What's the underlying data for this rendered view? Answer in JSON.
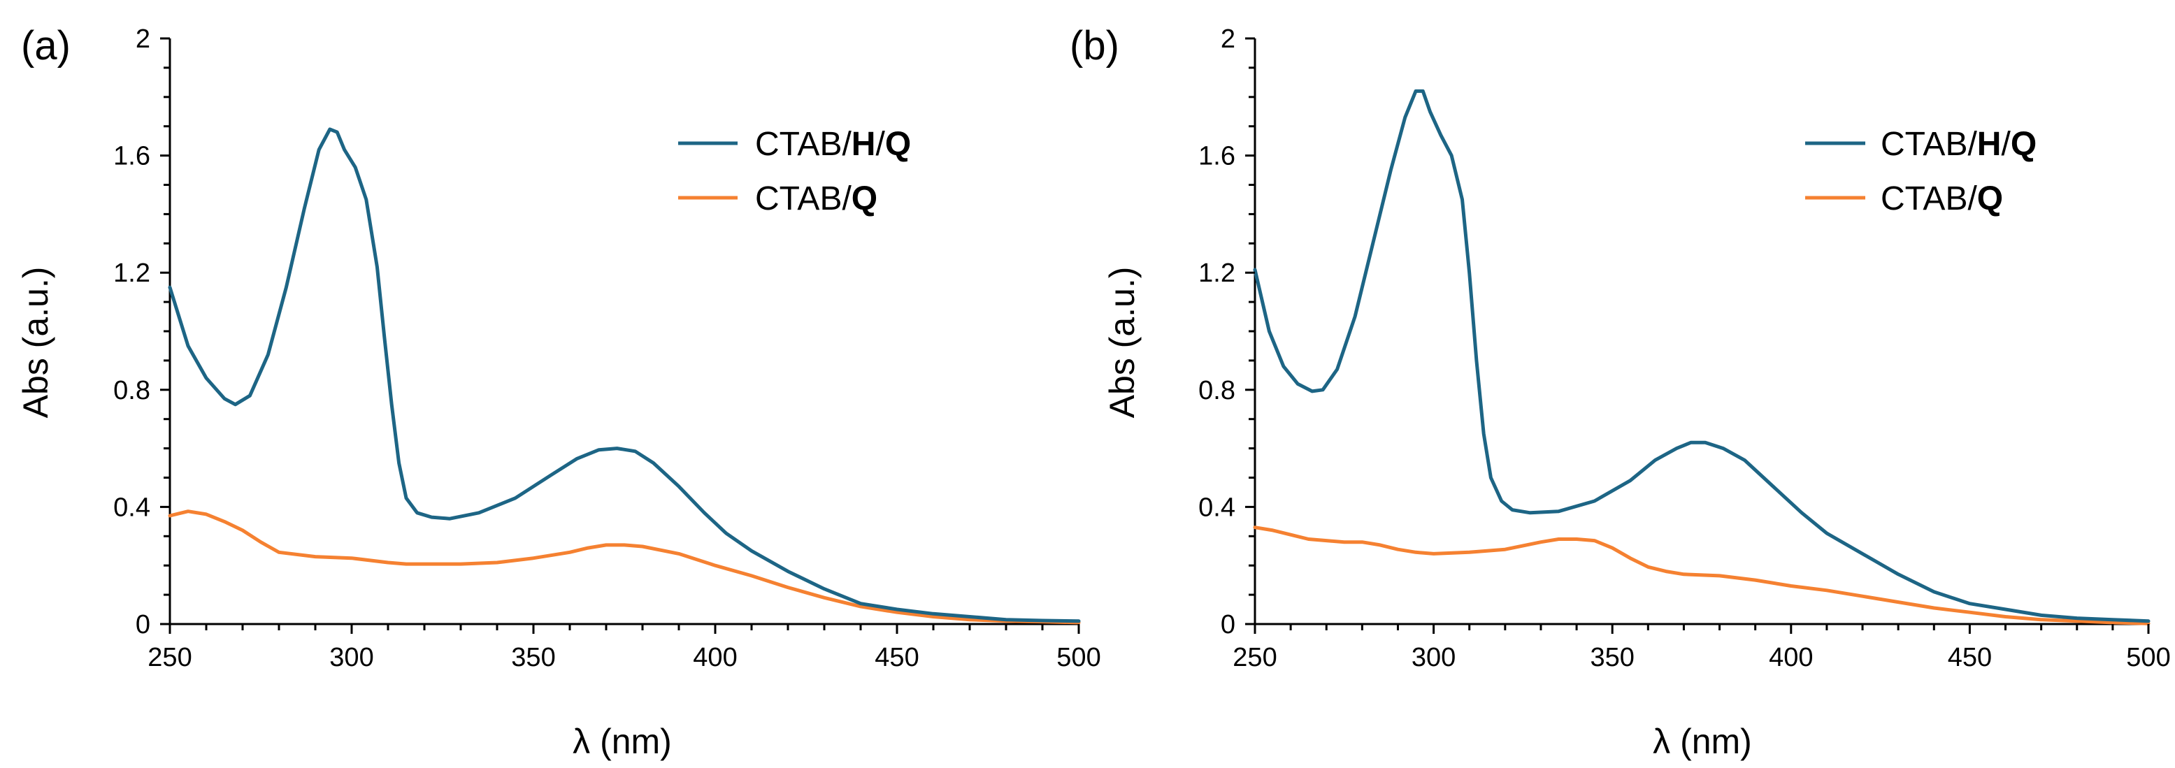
{
  "chart_data": [
    {
      "panel": "(a)",
      "type": "line",
      "xlabel": "λ (nm)",
      "ylabel": "Abs (a.u.)",
      "xlim": [
        250,
        500
      ],
      "ylim": [
        0,
        2
      ],
      "xticks": [
        "250",
        "300",
        "350",
        "400",
        "450",
        "500"
      ],
      "yticks": [
        "0",
        "0.4",
        "0.8",
        "1.2",
        "1.6",
        "2"
      ],
      "legend": [
        {
          "prefix": "CTAB/",
          "parts": [
            "H",
            "/",
            "Q"
          ],
          "bold": [
            true,
            false,
            true
          ],
          "color": "#1d6585"
        },
        {
          "prefix": "CTAB/",
          "parts": [
            "Q"
          ],
          "bold": [
            true
          ],
          "color": "#f58131"
        }
      ],
      "series": [
        {
          "name": "CTAB/H/Q",
          "color": "#1d6585",
          "x": [
            250,
            255,
            260,
            265,
            268,
            272,
            277,
            282,
            287,
            291,
            294,
            296,
            298,
            301,
            304,
            307,
            309,
            311,
            313,
            315,
            318,
            322,
            327,
            335,
            345,
            355,
            362,
            368,
            373,
            378,
            383,
            390,
            397,
            403,
            410,
            420,
            430,
            440,
            450,
            460,
            470,
            480,
            490,
            500
          ],
          "y": [
            1.15,
            0.95,
            0.84,
            0.77,
            0.75,
            0.78,
            0.92,
            1.15,
            1.42,
            1.62,
            1.69,
            1.68,
            1.62,
            1.56,
            1.45,
            1.22,
            0.98,
            0.75,
            0.55,
            0.43,
            0.38,
            0.365,
            0.36,
            0.38,
            0.43,
            0.51,
            0.565,
            0.595,
            0.6,
            0.59,
            0.55,
            0.47,
            0.38,
            0.31,
            0.25,
            0.18,
            0.12,
            0.07,
            0.05,
            0.035,
            0.025,
            0.015,
            0.012,
            0.01
          ]
        },
        {
          "name": "CTAB/Q",
          "color": "#f58131",
          "x": [
            250,
            255,
            260,
            265,
            270,
            275,
            280,
            290,
            300,
            310,
            315,
            320,
            330,
            340,
            350,
            360,
            365,
            370,
            375,
            380,
            390,
            400,
            410,
            420,
            430,
            440,
            450,
            460,
            470,
            480,
            490,
            500
          ],
          "y": [
            0.37,
            0.385,
            0.375,
            0.35,
            0.32,
            0.28,
            0.245,
            0.23,
            0.225,
            0.21,
            0.205,
            0.205,
            0.205,
            0.21,
            0.225,
            0.245,
            0.26,
            0.27,
            0.27,
            0.265,
            0.24,
            0.2,
            0.165,
            0.125,
            0.09,
            0.06,
            0.04,
            0.025,
            0.015,
            0.01,
            0.008,
            0.005
          ]
        }
      ]
    },
    {
      "panel": "(b)",
      "type": "line",
      "xlabel": "λ (nm)",
      "ylabel": "Abs (a.u.)",
      "xlim": [
        250,
        500
      ],
      "ylim": [
        0,
        2
      ],
      "xticks": [
        "250",
        "300",
        "350",
        "400",
        "450",
        "500"
      ],
      "yticks": [
        "0",
        "0.4",
        "0.8",
        "1.2",
        "1.6",
        "2"
      ],
      "legend": [
        {
          "prefix": "CTAB/",
          "parts": [
            "H",
            "/",
            "Q"
          ],
          "bold": [
            true,
            false,
            true
          ],
          "color": "#1d6585"
        },
        {
          "prefix": "CTAB/",
          "parts": [
            "Q"
          ],
          "bold": [
            true
          ],
          "color": "#f58131"
        }
      ],
      "series": [
        {
          "name": "CTAB/H/Q",
          "color": "#1d6585",
          "x": [
            250,
            254,
            258,
            262,
            266,
            269,
            273,
            278,
            283,
            288,
            292,
            295,
            297,
            299,
            302,
            305,
            308,
            310,
            312,
            314,
            316,
            319,
            322,
            327,
            335,
            345,
            355,
            362,
            368,
            372,
            376,
            381,
            387,
            395,
            403,
            410,
            420,
            430,
            440,
            450,
            460,
            470,
            480,
            490,
            500
          ],
          "y": [
            1.21,
            1.0,
            0.88,
            0.82,
            0.795,
            0.8,
            0.87,
            1.05,
            1.3,
            1.55,
            1.73,
            1.82,
            1.82,
            1.75,
            1.67,
            1.6,
            1.45,
            1.2,
            0.9,
            0.65,
            0.5,
            0.42,
            0.39,
            0.38,
            0.385,
            0.42,
            0.49,
            0.56,
            0.6,
            0.62,
            0.62,
            0.6,
            0.56,
            0.47,
            0.38,
            0.31,
            0.24,
            0.17,
            0.11,
            0.07,
            0.05,
            0.03,
            0.02,
            0.015,
            0.01
          ]
        },
        {
          "name": "CTAB/Q",
          "color": "#f58131",
          "x": [
            250,
            255,
            260,
            265,
            270,
            275,
            280,
            285,
            290,
            295,
            300,
            310,
            320,
            330,
            335,
            340,
            345,
            350,
            355,
            360,
            365,
            370,
            380,
            390,
            400,
            410,
            420,
            430,
            440,
            450,
            460,
            470,
            480,
            490,
            500
          ],
          "y": [
            0.33,
            0.32,
            0.305,
            0.29,
            0.285,
            0.28,
            0.28,
            0.27,
            0.255,
            0.245,
            0.24,
            0.245,
            0.255,
            0.28,
            0.29,
            0.29,
            0.285,
            0.26,
            0.225,
            0.195,
            0.18,
            0.17,
            0.165,
            0.15,
            0.13,
            0.115,
            0.095,
            0.075,
            0.055,
            0.04,
            0.025,
            0.015,
            0.01,
            0.005,
            0.002
          ]
        }
      ]
    }
  ]
}
